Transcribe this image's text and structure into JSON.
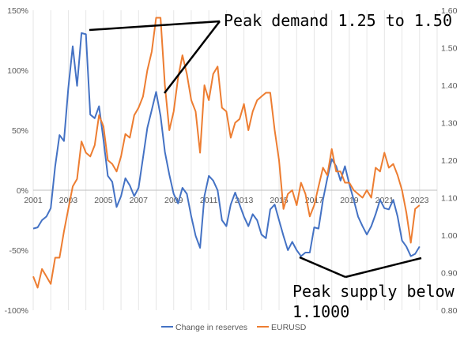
{
  "chart_data": {
    "type": "line",
    "x_ticks": [
      "2001",
      "2003",
      "2005",
      "2007",
      "2009",
      "2011",
      "2013",
      "2015",
      "2017",
      "2019",
      "2021",
      "2023"
    ],
    "y_left": {
      "ylim": [
        -100,
        150
      ],
      "ticks": [
        "150%",
        "100%",
        "50%",
        "0%",
        "-50%",
        "-100%"
      ],
      "unit": "%"
    },
    "y_right": {
      "ylim": [
        0.8,
        1.6
      ],
      "ticks": [
        "1.60",
        "1.50",
        "1.40",
        "1.30",
        "1.20",
        "1.10",
        "1.00",
        "0.90",
        "0.80"
      ]
    },
    "xlim": [
      2001.0,
      2024.0
    ],
    "grid": "vertical",
    "legend_position": "bottom",
    "series": [
      {
        "name": "Change in reserves",
        "axis": "left",
        "color": "#4472c4",
        "points": [
          [
            2001.0,
            -32
          ],
          [
            2001.25,
            -31
          ],
          [
            2001.5,
            -25
          ],
          [
            2001.75,
            -22
          ],
          [
            2002.0,
            -15
          ],
          [
            2002.25,
            20
          ],
          [
            2002.5,
            46
          ],
          [
            2002.75,
            41
          ],
          [
            2003.0,
            85
          ],
          [
            2003.25,
            120
          ],
          [
            2003.5,
            87
          ],
          [
            2003.75,
            131
          ],
          [
            2004.0,
            130
          ],
          [
            2004.25,
            63
          ],
          [
            2004.5,
            60
          ],
          [
            2004.75,
            70
          ],
          [
            2005.0,
            42
          ],
          [
            2005.25,
            12
          ],
          [
            2005.5,
            7
          ],
          [
            2005.75,
            -14
          ],
          [
            2006.0,
            -5
          ],
          [
            2006.25,
            10
          ],
          [
            2006.5,
            4
          ],
          [
            2006.75,
            -5
          ],
          [
            2007.0,
            2
          ],
          [
            2007.25,
            27
          ],
          [
            2007.5,
            52
          ],
          [
            2007.75,
            67
          ],
          [
            2008.0,
            82
          ],
          [
            2008.25,
            62
          ],
          [
            2008.5,
            32
          ],
          [
            2008.75,
            13
          ],
          [
            2009.0,
            -3
          ],
          [
            2009.25,
            -11
          ],
          [
            2009.5,
            2
          ],
          [
            2009.75,
            -3
          ],
          [
            2010.0,
            -22
          ],
          [
            2010.25,
            -38
          ],
          [
            2010.5,
            -48
          ],
          [
            2010.75,
            -5
          ],
          [
            2011.0,
            12
          ],
          [
            2011.25,
            8
          ],
          [
            2011.5,
            0
          ],
          [
            2011.75,
            -25
          ],
          [
            2012.0,
            -30
          ],
          [
            2012.25,
            -12
          ],
          [
            2012.5,
            -2
          ],
          [
            2012.75,
            -12
          ],
          [
            2013.0,
            -22
          ],
          [
            2013.25,
            -30
          ],
          [
            2013.5,
            -20
          ],
          [
            2013.75,
            -25
          ],
          [
            2014.0,
            -37
          ],
          [
            2014.25,
            -40
          ],
          [
            2014.5,
            -16
          ],
          [
            2014.75,
            -12
          ],
          [
            2015.0,
            -25
          ],
          [
            2015.25,
            -38
          ],
          [
            2015.5,
            -50
          ],
          [
            2015.75,
            -43
          ],
          [
            2016.0,
            -50
          ],
          [
            2016.25,
            -55
          ],
          [
            2016.5,
            -52
          ],
          [
            2016.75,
            -52
          ],
          [
            2017.0,
            -31
          ],
          [
            2017.25,
            -32
          ],
          [
            2017.5,
            -8
          ],
          [
            2017.75,
            10
          ],
          [
            2018.0,
            26
          ],
          [
            2018.25,
            20
          ],
          [
            2018.5,
            8
          ],
          [
            2018.75,
            20
          ],
          [
            2019.0,
            5
          ],
          [
            2019.25,
            -8
          ],
          [
            2019.5,
            -22
          ],
          [
            2019.75,
            -30
          ],
          [
            2020.0,
            -37
          ],
          [
            2020.25,
            -30
          ],
          [
            2020.5,
            -20
          ],
          [
            2020.75,
            -8
          ],
          [
            2021.0,
            -15
          ],
          [
            2021.25,
            -16
          ],
          [
            2021.5,
            -8
          ],
          [
            2021.75,
            -22
          ],
          [
            2022.0,
            -42
          ],
          [
            2022.25,
            -47
          ],
          [
            2022.5,
            -55
          ],
          [
            2022.75,
            -53
          ],
          [
            2023.0,
            -47
          ]
        ]
      },
      {
        "name": "EURUSD",
        "axis": "right",
        "color": "#ed7d31",
        "points": [
          [
            2001.0,
            0.89
          ],
          [
            2001.25,
            0.86
          ],
          [
            2001.5,
            0.91
          ],
          [
            2001.75,
            0.89
          ],
          [
            2002.0,
            0.87
          ],
          [
            2002.25,
            0.94
          ],
          [
            2002.5,
            0.94
          ],
          [
            2002.75,
            1.01
          ],
          [
            2003.0,
            1.07
          ],
          [
            2003.25,
            1.13
          ],
          [
            2003.5,
            1.15
          ],
          [
            2003.75,
            1.25
          ],
          [
            2004.0,
            1.22
          ],
          [
            2004.25,
            1.21
          ],
          [
            2004.5,
            1.24
          ],
          [
            2004.75,
            1.32
          ],
          [
            2005.0,
            1.29
          ],
          [
            2005.25,
            1.2
          ],
          [
            2005.5,
            1.19
          ],
          [
            2005.75,
            1.17
          ],
          [
            2006.0,
            1.21
          ],
          [
            2006.25,
            1.27
          ],
          [
            2006.5,
            1.26
          ],
          [
            2006.75,
            1.32
          ],
          [
            2007.0,
            1.34
          ],
          [
            2007.25,
            1.37
          ],
          [
            2007.5,
            1.44
          ],
          [
            2007.75,
            1.49
          ],
          [
            2008.0,
            1.58
          ],
          [
            2008.25,
            1.58
          ],
          [
            2008.5,
            1.4
          ],
          [
            2008.75,
            1.28
          ],
          [
            2009.0,
            1.33
          ],
          [
            2009.25,
            1.42
          ],
          [
            2009.5,
            1.48
          ],
          [
            2009.75,
            1.43
          ],
          [
            2010.0,
            1.36
          ],
          [
            2010.25,
            1.33
          ],
          [
            2010.5,
            1.22
          ],
          [
            2010.75,
            1.4
          ],
          [
            2011.0,
            1.36
          ],
          [
            2011.25,
            1.43
          ],
          [
            2011.5,
            1.45
          ],
          [
            2011.75,
            1.34
          ],
          [
            2012.0,
            1.33
          ],
          [
            2012.25,
            1.26
          ],
          [
            2012.5,
            1.3
          ],
          [
            2012.75,
            1.31
          ],
          [
            2013.0,
            1.35
          ],
          [
            2013.25,
            1.28
          ],
          [
            2013.5,
            1.33
          ],
          [
            2013.75,
            1.36
          ],
          [
            2014.0,
            1.37
          ],
          [
            2014.25,
            1.38
          ],
          [
            2014.5,
            1.38
          ],
          [
            2014.75,
            1.28
          ],
          [
            2015.0,
            1.2
          ],
          [
            2015.25,
            1.07
          ],
          [
            2015.5,
            1.11
          ],
          [
            2015.75,
            1.12
          ],
          [
            2016.0,
            1.08
          ],
          [
            2016.25,
            1.14
          ],
          [
            2016.5,
            1.11
          ],
          [
            2016.75,
            1.05
          ],
          [
            2017.0,
            1.08
          ],
          [
            2017.25,
            1.13
          ],
          [
            2017.5,
            1.18
          ],
          [
            2017.75,
            1.16
          ],
          [
            2018.0,
            1.23
          ],
          [
            2018.25,
            1.17
          ],
          [
            2018.5,
            1.17
          ],
          [
            2018.75,
            1.14
          ],
          [
            2019.0,
            1.14
          ],
          [
            2019.25,
            1.12
          ],
          [
            2019.5,
            1.11
          ],
          [
            2019.75,
            1.1
          ],
          [
            2020.0,
            1.12
          ],
          [
            2020.25,
            1.1
          ],
          [
            2020.5,
            1.18
          ],
          [
            2020.75,
            1.17
          ],
          [
            2021.0,
            1.22
          ],
          [
            2021.25,
            1.18
          ],
          [
            2021.5,
            1.19
          ],
          [
            2021.75,
            1.16
          ],
          [
            2022.0,
            1.12
          ],
          [
            2022.25,
            1.06
          ],
          [
            2022.5,
            0.98
          ],
          [
            2022.75,
            1.07
          ],
          [
            2023.0,
            1.08
          ]
        ]
      }
    ],
    "annotations": [
      {
        "text": "Peak demand 1.25 to 1.50"
      },
      {
        "text": "Peak supply below"
      },
      {
        "text": "1.1000"
      }
    ]
  }
}
